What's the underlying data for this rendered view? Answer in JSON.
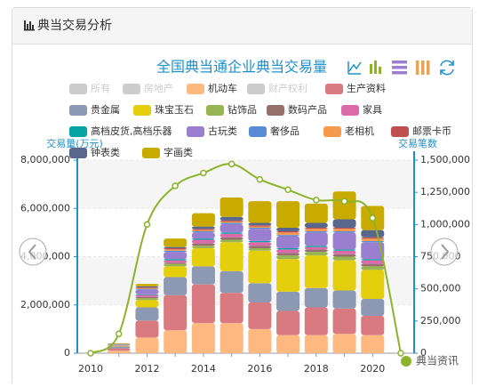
{
  "header": {
    "title": "典当交易分析"
  },
  "watermark": "典当资讯",
  "chart_data": {
    "type": "stacked-bar-line",
    "title": "全国典当通企业典当交易量",
    "y_label": "交易量(万元)",
    "y2_label": "交易笔数",
    "categories": [
      "2010",
      null,
      "2012",
      null,
      "2014",
      null,
      "2016",
      null,
      "2018",
      null,
      "2020",
      null
    ],
    "ylim": [
      0,
      8000000
    ],
    "yticks": [
      0,
      {
        "value": 2000000,
        "label": "2,000,000"
      },
      {
        "value": 4000000,
        "label": "4,000,000"
      },
      {
        "value": 6000000,
        "label": "6,000,000"
      },
      {
        "value": 8000000,
        "label": "8,000,000"
      }
    ],
    "y2lim": [
      0,
      1500000
    ],
    "y2ticks": [
      0,
      {
        "value": 250000,
        "label": "250,000"
      },
      {
        "value": 500000,
        "label": "500,000"
      },
      {
        "value": 750000,
        "label": "750,000"
      },
      {
        "value": 1000000,
        "label": "1,000,000"
      },
      {
        "value": 1250000,
        "label": "1,250,000"
      },
      {
        "value": 1500000,
        "label": "1,500,000"
      }
    ],
    "grid": true,
    "series": [
      {
        "name": "所有",
        "color": "#cccccc",
        "visible": false,
        "values": [
          null,
          null,
          null,
          null,
          null,
          null,
          null,
          null,
          null,
          null,
          null,
          null
        ]
      },
      {
        "name": "房地产",
        "color": "#cccccc",
        "visible": false,
        "values": [
          null,
          null,
          null,
          null,
          null,
          null,
          null,
          null,
          null,
          null,
          null,
          null
        ]
      },
      {
        "name": "机动车",
        "color": "#ffb980",
        "visible": true,
        "values": [
          null,
          100000,
          650000,
          950000,
          1250000,
          1250000,
          1000000,
          750000,
          750000,
          800000,
          750000,
          null
        ]
      },
      {
        "name": "财产权利",
        "color": "#cccccc",
        "visible": false,
        "values": [
          null,
          null,
          null,
          null,
          null,
          null,
          null,
          null,
          null,
          null,
          null,
          null
        ]
      },
      {
        "name": "生产资料",
        "color": "#d87a80",
        "visible": true,
        "values": [
          null,
          100000,
          700000,
          1450000,
          1600000,
          1250000,
          1100000,
          1000000,
          1150000,
          1050000,
          800000,
          null
        ]
      },
      {
        "name": "贵金属",
        "color": "#8d98b3",
        "visible": true,
        "values": [
          null,
          80000,
          550000,
          750000,
          750000,
          900000,
          800000,
          800000,
          800000,
          750000,
          700000,
          null
        ]
      },
      {
        "name": "珠宝玉石",
        "color": "#e5cf0d",
        "visible": true,
        "values": [
          null,
          20000,
          300000,
          450000,
          750000,
          1200000,
          1350000,
          1350000,
          1350000,
          1250000,
          1200000,
          null
        ]
      },
      {
        "name": "钻饰品",
        "color": "#97b552",
        "visible": true,
        "values": [
          null,
          10000,
          80000,
          100000,
          100000,
          100000,
          100000,
          150000,
          150000,
          150000,
          150000,
          null
        ]
      },
      {
        "name": "数码产品",
        "color": "#95706d",
        "visible": true,
        "values": [
          null,
          10000,
          50000,
          50000,
          100000,
          100000,
          100000,
          100000,
          100000,
          100000,
          100000,
          null
        ]
      },
      {
        "name": "家具",
        "color": "#dc69aa",
        "visible": true,
        "values": [
          null,
          10000,
          80000,
          100000,
          150000,
          150000,
          150000,
          150000,
          100000,
          150000,
          150000,
          null
        ]
      },
      {
        "name": "高档皮货,高档乐器",
        "color": "#07a2a4",
        "visible": true,
        "values": [
          null,
          10000,
          30000,
          50000,
          50000,
          50000,
          50000,
          50000,
          50000,
          50000,
          50000,
          null
        ]
      },
      {
        "name": "古玩类",
        "color": "#9a7fd1",
        "visible": true,
        "values": [
          null,
          10000,
          200000,
          300000,
          250000,
          350000,
          500000,
          500000,
          550000,
          700000,
          700000,
          null
        ]
      },
      {
        "name": "奢侈品",
        "color": "#588dd5",
        "visible": true,
        "values": [
          null,
          10000,
          30000,
          50000,
          50000,
          50000,
          50000,
          50000,
          50000,
          50000,
          50000,
          null
        ]
      },
      {
        "name": "老相机",
        "color": "#f5994e",
        "visible": true,
        "values": [
          null,
          10000,
          30000,
          50000,
          50000,
          50000,
          50000,
          100000,
          100000,
          100000,
          100000,
          null
        ]
      },
      {
        "name": "邮票卡币",
        "color": "#c05050",
        "visible": true,
        "values": [
          null,
          10000,
          30000,
          50000,
          50000,
          50000,
          50000,
          50000,
          50000,
          50000,
          50000,
          null
        ]
      },
      {
        "name": "钟表类",
        "color": "#59678c",
        "visible": true,
        "values": [
          null,
          10000,
          40000,
          50000,
          100000,
          150000,
          100000,
          150000,
          200000,
          350000,
          300000,
          null
        ]
      },
      {
        "name": "字画类",
        "color": "#c9ab00",
        "visible": true,
        "values": [
          null,
          20000,
          100000,
          350000,
          550000,
          800000,
          900000,
          1100000,
          800000,
          1150000,
          1000000,
          null
        ]
      },
      {
        "type": "line",
        "axis": "y2",
        "color": "#8cb32a",
        "values": [
          0,
          150000,
          1000000,
          1300000,
          1400000,
          1470000,
          1350000,
          1270000,
          1190000,
          1180000,
          1050000,
          0
        ]
      }
    ]
  }
}
